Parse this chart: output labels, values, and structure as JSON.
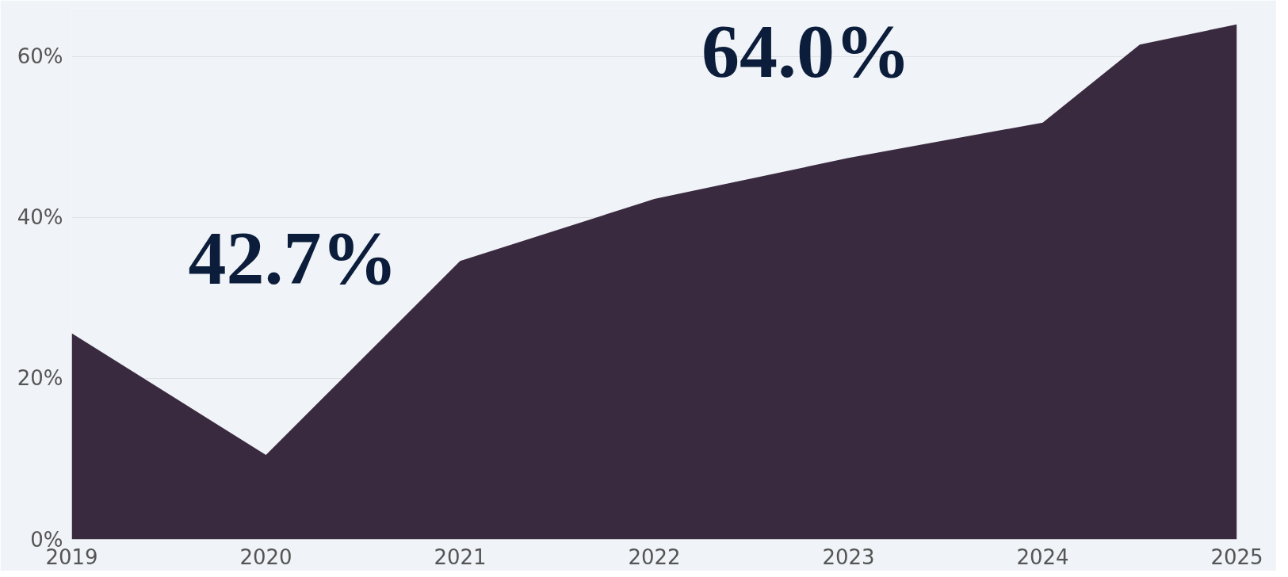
{
  "chart_data": {
    "type": "area",
    "x": [
      2019,
      2020,
      2021,
      2022,
      2023,
      2024,
      2024.5,
      2025
    ],
    "series": [
      {
        "color": "#3a2a40",
        "values": [
          25.6,
          10.5,
          34.6,
          42.3,
          47.4,
          51.8,
          61.5,
          64.0
        ]
      }
    ],
    "xlim": [
      2019,
      2025
    ],
    "ylim": [
      0,
      66
    ],
    "xticks": [
      2019,
      2020,
      2021,
      2022,
      2023,
      2024,
      2025
    ],
    "yticks": [
      {
        "value": 0,
        "label": "0%"
      },
      {
        "value": 20,
        "label": "20%"
      },
      {
        "value": 40,
        "label": "40%"
      },
      {
        "value": 60,
        "label": "60%"
      }
    ],
    "grid": "y",
    "annotations": [
      "42.7%",
      "64.0%"
    ]
  }
}
